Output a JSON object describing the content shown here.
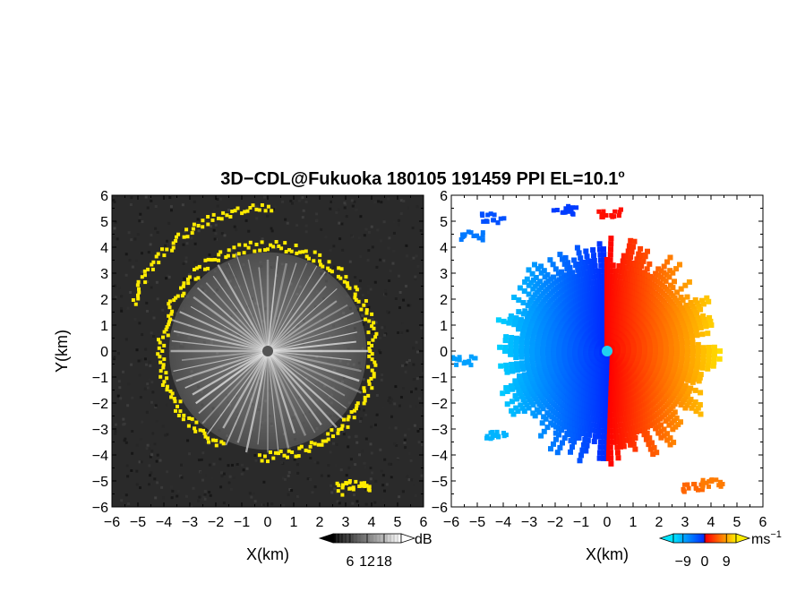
{
  "chart_data": {
    "title": "3D-CDL@Fukuoka 180105 191459 PPI EL=10.1º",
    "panels": [
      {
        "type": "heatmap",
        "xlabel": "X(km)",
        "ylabel": "Y(km)",
        "xlim": [
          -6,
          6
        ],
        "ylim": [
          -6,
          6
        ],
        "xticks": [
          -6,
          -5,
          -4,
          -3,
          -2,
          -1,
          0,
          1,
          2,
          3,
          4,
          5,
          6
        ],
        "yticks": [
          -6,
          -5,
          -4,
          -3,
          -2,
          -1,
          0,
          1,
          2,
          3,
          4,
          5,
          6
        ],
        "colorbar": {
          "label": "dB",
          "ticks": [
            6,
            12,
            18
          ],
          "range": [
            0,
            24
          ],
          "colors": [
            "#000000",
            "#ffffff"
          ]
        },
        "highlight_color": "#ffeb00",
        "echo_radius_km": 3.8
      },
      {
        "type": "heatmap",
        "xlabel": "X(km)",
        "ylabel": "",
        "xlim": [
          -6,
          6
        ],
        "ylim": [
          -6,
          6
        ],
        "xticks": [
          -6,
          -5,
          -4,
          -3,
          -2,
          -1,
          0,
          1,
          2,
          3,
          4,
          5,
          6
        ],
        "yticks": [
          -6,
          -5,
          -4,
          -3,
          -2,
          -1,
          0,
          1,
          2,
          3,
          4,
          5,
          6
        ],
        "colorbar": {
          "label": "ms",
          "label_sup": "−1",
          "ticks": [
            -9,
            0,
            9
          ],
          "range": [
            -13,
            13
          ],
          "colors": [
            "#00e5ff",
            "#0040ff",
            "#ff0000",
            "#ffee00"
          ]
        },
        "echo_radius_km": 4.3
      }
    ]
  },
  "title_text": "3D−CDL@Fukuoka 180105 191459 PPI EL=10.1",
  "title_sup": "o",
  "left": {
    "xlabel": "X(km)",
    "ylabel": "Y(km)",
    "cb_unit": "dB"
  },
  "right": {
    "xlabel": "X(km)",
    "cb_unit": "ms",
    "cb_unit_sup": "−1"
  }
}
